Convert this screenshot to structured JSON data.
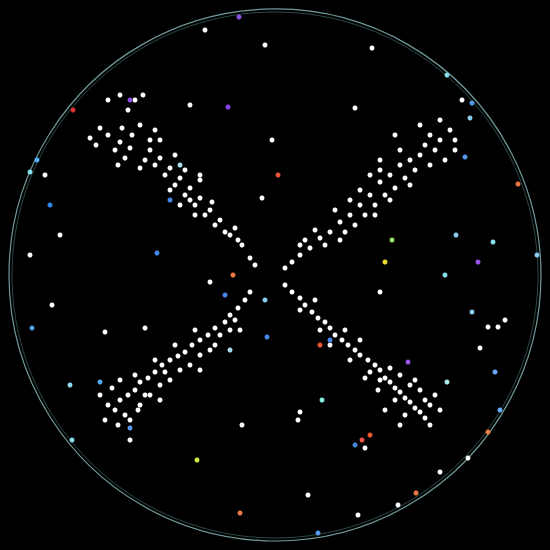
{
  "chart_data": {
    "type": "scatter",
    "xlim": [
      -270,
      270
    ],
    "ylim": [
      -270,
      270
    ],
    "xticks": [
      -270,
      0,
      270
    ],
    "yticks": [
      -270,
      0,
      270
    ],
    "grid": false,
    "tick_labels": false,
    "series": [
      {
        "color": "#ffffff",
        "marker": "circle",
        "x": [
          -185,
          -175,
          -179,
          -167,
          -160,
          -155,
          -150,
          -145,
          -143,
          -135,
          -132,
          -140,
          -147,
          -130,
          -125,
          -120,
          -115,
          -110,
          -105,
          -100,
          -95,
          -90,
          -85,
          -80,
          -75,
          -70,
          -65,
          -60,
          -55,
          -45,
          -37,
          -33,
          -40,
          -50,
          -75,
          -85,
          -105,
          -125,
          -135,
          -157,
          -115,
          -95,
          -63,
          -20,
          -25,
          -153,
          -120,
          -90,
          -100,
          -80,
          175,
          165,
          155,
          160,
          145,
          150,
          135,
          140,
          125,
          130,
          115,
          120,
          105,
          110,
          95,
          100,
          85,
          90,
          75,
          80,
          65,
          70,
          55,
          45,
          50,
          35,
          25,
          17,
          10,
          120,
          145,
          180,
          170,
          105,
          95,
          115,
          85,
          60,
          40,
          75,
          135,
          155,
          125,
          100,
          65,
          30,
          25,
          165,
          180,
          105,
          -25,
          -30,
          -37,
          -45,
          -50,
          -60,
          -67,
          -75,
          -83,
          -90,
          -97,
          -105,
          -113,
          -120,
          -127,
          -135,
          -140,
          -147,
          -155,
          -160,
          -167,
          -150,
          -135,
          -125,
          -115,
          -105,
          -95,
          -85,
          -75,
          -65,
          -55,
          -45,
          -40,
          -157,
          -145,
          -130,
          -175,
          -163,
          -115,
          -75,
          -35,
          -100,
          -120,
          -140,
          -80,
          -60,
          -155,
          -137,
          -170,
          -110,
          10,
          17,
          25,
          30,
          37,
          43,
          50,
          55,
          60,
          67,
          73,
          80,
          85,
          93,
          100,
          105,
          110,
          115,
          120,
          125,
          130,
          135,
          140,
          145,
          150,
          155,
          160,
          145,
          135,
          125,
          115,
          105,
          95,
          120,
          130,
          140,
          150,
          103,
          85,
          70,
          45,
          55,
          25,
          40,
          165,
          110,
          125,
          90,
          75,
          155,
          -70,
          -10,
          97,
          -85,
          -3,
          -155,
          80,
          -215,
          -245,
          -223,
          -170,
          -130,
          105,
          25,
          23,
          -33,
          33,
          83,
          123,
          213,
          223,
          205,
          193,
          90,
          165,
          187,
          -13,
          -65,
          -145,
          -75,
          -167,
          -230,
          230
        ],
        "y": [
          137,
          147,
          130,
          140,
          125,
          133,
          117,
          127,
          140,
          150,
          180,
          175,
          165,
          115,
          125,
          110,
          117,
          100,
          107,
          90,
          97,
          80,
          87,
          70,
          77,
          60,
          65,
          50,
          55,
          40,
          35,
          30,
          47,
          43,
          95,
          75,
          85,
          135,
          107,
          110,
          135,
          70,
          73,
          10,
          17,
          147,
          145,
          105,
          120,
          60,
          145,
          135,
          140,
          125,
          120,
          130,
          115,
          105,
          110,
          97,
          100,
          87,
          93,
          80,
          80,
          70,
          70,
          60,
          60,
          50,
          53,
          43,
          43,
          37,
          30,
          27,
          20,
          13,
          7,
          140,
          150,
          125,
          115,
          115,
          100,
          75,
          85,
          65,
          45,
          75,
          90,
          110,
          125,
          60,
          35,
          35,
          30,
          155,
          135,
          105,
          -17,
          -25,
          -33,
          -40,
          -47,
          -53,
          -60,
          -65,
          -70,
          -77,
          -81,
          -85,
          -90,
          -97,
          -103,
          -107,
          -115,
          -120,
          -125,
          -135,
          -130,
          -140,
          -130,
          -120,
          -110,
          -105,
          -95,
          -90,
          -80,
          -75,
          -60,
          -55,
          -45,
          -150,
          -145,
          -120,
          -120,
          -113,
          -125,
          -95,
          -55,
          -70,
          -85,
          -100,
          -55,
          -70,
          -105,
          -135,
          -145,
          -97,
          -10,
          -17,
          -23,
          -30,
          -37,
          -43,
          -47,
          -53,
          -60,
          -65,
          -70,
          -75,
          -80,
          -85,
          -90,
          -95,
          -103,
          -107,
          -113,
          -117,
          -123,
          -127,
          -133,
          -137,
          -143,
          -130,
          -120,
          -115,
          -110,
          -100,
          -93,
          -105,
          -97,
          -125,
          -140,
          -105,
          -125,
          -115,
          -65,
          -55,
          -55,
          -70,
          -35,
          -25,
          -135,
          -135,
          -150,
          -103,
          -85,
          -150,
          245,
          230,
          227,
          170,
          135,
          180,
          167,
          40,
          20,
          -30,
          -57,
          -53,
          -17,
          -137,
          -145,
          -150,
          -220,
          -240,
          -230,
          -52,
          -52,
          -73,
          -183,
          -173,
          -197,
          175,
          77,
          -7,
          -165,
          100,
          175,
          100,
          -45
        ]
      },
      {
        "marker": "circle",
        "x": [
          -36,
          -202,
          -145,
          -47,
          3,
          -238,
          -245,
          -225,
          -118,
          -42,
          -243,
          -175,
          -205,
          -145,
          -78,
          -35,
          43,
          80,
          87,
          95,
          141,
          213,
          225,
          220,
          172,
          197,
          170,
          203,
          110,
          117,
          181,
          218,
          262,
          243,
          190,
          197,
          195,
          172,
          -8,
          45,
          55,
          133,
          -10,
          47,
          -105,
          -95,
          -45,
          -203,
          -50
        ],
        "y": [
          258,
          165,
          175,
          168,
          100,
          115,
          103,
          70,
          22,
          0,
          -53,
          -107,
          -110,
          -153,
          -185,
          -238,
          -258,
          -170,
          -165,
          -160,
          -218,
          -157,
          -135,
          -97,
          -107,
          -37,
          0,
          13,
          13,
          35,
          40,
          33,
          20,
          91,
          118,
          172,
          157,
          200,
          -62,
          -70,
          -65,
          -87,
          -25,
          -125,
          75,
          110,
          -75,
          -165,
          -20
        ],
        "colors": [
          "#8a4fe0",
          "#e03030",
          "#9050e8",
          "#8a44ee",
          "#ee5533",
          "#55aaff",
          "#88ddee",
          "#3388ee",
          "#4488ee",
          "#ee7744",
          "#5599ee",
          "#55aaee",
          "#88ddee",
          "#5599ee",
          "#ccee44",
          "#ee7744",
          "#5599ee",
          "#4488dd",
          "#ee5544",
          "#ee5533",
          "#ee7744",
          "#ee7744",
          "#66aaff",
          "#66aaff",
          "#aaeeee",
          "#88ccee",
          "#88ddee",
          "#9955ee",
          "#eedd33",
          "#99ee66",
          "#88ccee",
          "#88ddee",
          "#88ccee",
          "#ee7744",
          "#5599ee",
          "#5599ee",
          "#88ccee",
          "#88ddee",
          "#4488ee",
          "#ee5533",
          "#4488ee",
          "#9955ee",
          "#88ccee",
          "#88eedd",
          "#4488ee",
          "#aaddee",
          "#aaddee",
          "#88ddee",
          "#4488ee"
        ]
      }
    ]
  }
}
